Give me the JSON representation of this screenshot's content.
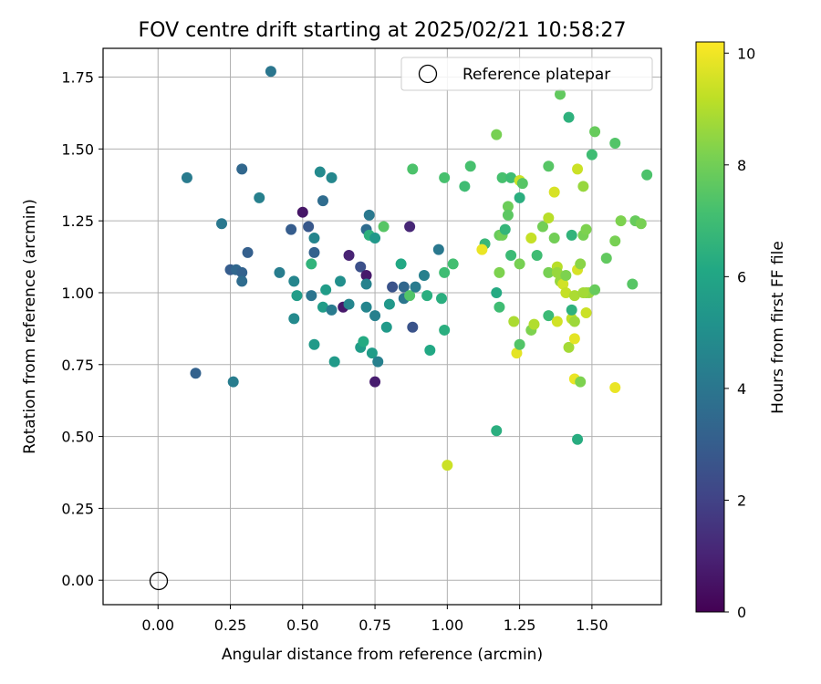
{
  "chart_data": {
    "type": "scatter",
    "title": "FOV centre drift starting at 2025/02/21 10:58:27",
    "xlabel": "Angular distance from reference (arcmin)",
    "ylabel": "Rotation from reference (arcmin)",
    "xlim": [
      -0.19,
      1.74
    ],
    "ylim": [
      -0.085,
      1.85
    ],
    "xticks": [
      0.0,
      0.25,
      0.5,
      0.75,
      1.0,
      1.25,
      1.5
    ],
    "xtick_labels": [
      "0.00",
      "0.25",
      "0.50",
      "0.75",
      "1.00",
      "1.25",
      "1.50"
    ],
    "yticks": [
      0.0,
      0.25,
      0.5,
      0.75,
      1.0,
      1.25,
      1.5,
      1.75
    ],
    "ytick_labels": [
      "0.00",
      "0.25",
      "0.50",
      "0.75",
      "1.00",
      "1.25",
      "1.50",
      "1.75"
    ],
    "grid": true,
    "legend": {
      "position": "top-right",
      "entries": [
        "Reference platepar"
      ]
    },
    "reference_point": {
      "x": 0.0,
      "y": 0.0
    },
    "colorbar": {
      "label": "Hours from first FF file",
      "range": [
        0,
        10.2
      ],
      "ticks": [
        0,
        2,
        4,
        6,
        8,
        10
      ],
      "colormap": "viridis"
    },
    "points": [
      [
        0.39,
        1.77,
        4.0
      ],
      [
        0.1,
        1.4,
        4.2
      ],
      [
        0.29,
        1.43,
        3.4
      ],
      [
        0.35,
        1.33,
        4.4
      ],
      [
        0.22,
        1.24,
        4.1
      ],
      [
        0.31,
        1.14,
        3.1
      ],
      [
        0.25,
        1.08,
        3.0
      ],
      [
        0.27,
        1.08,
        3.4
      ],
      [
        0.29,
        1.07,
        3.2
      ],
      [
        0.29,
        1.04,
        3.6
      ],
      [
        0.13,
        0.72,
        3.2
      ],
      [
        0.26,
        0.69,
        4.3
      ],
      [
        0.42,
        1.07,
        4.3
      ],
      [
        0.46,
        1.22,
        3.0
      ],
      [
        0.47,
        1.04,
        4.6
      ],
      [
        0.48,
        0.99,
        5.6
      ],
      [
        0.47,
        0.91,
        4.8
      ],
      [
        0.5,
        1.28,
        0.6
      ],
      [
        0.52,
        1.23,
        2.8
      ],
      [
        0.54,
        1.19,
        4.6
      ],
      [
        0.54,
        1.14,
        3.2
      ],
      [
        0.53,
        1.1,
        6.6
      ],
      [
        0.53,
        0.99,
        3.9
      ],
      [
        0.54,
        0.82,
        5.5
      ],
      [
        0.56,
        1.42,
        4.8
      ],
      [
        0.57,
        1.32,
        3.6
      ],
      [
        0.6,
        1.4,
        4.7
      ],
      [
        0.58,
        1.01,
        5.6
      ],
      [
        0.57,
        0.95,
        5.6
      ],
      [
        0.6,
        0.94,
        4.2
      ],
      [
        0.61,
        0.76,
        5.5
      ],
      [
        0.63,
        1.04,
        5.0
      ],
      [
        0.64,
        0.95,
        0.7
      ],
      [
        0.66,
        1.13,
        1.0
      ],
      [
        0.66,
        0.96,
        4.6
      ],
      [
        0.7,
        1.09,
        2.5
      ],
      [
        0.7,
        0.81,
        5.6
      ],
      [
        0.71,
        0.83,
        6.2
      ],
      [
        0.72,
        1.06,
        0.7
      ],
      [
        0.72,
        1.03,
        4.5
      ],
      [
        0.72,
        0.95,
        4.6
      ],
      [
        0.73,
        1.27,
        4.1
      ],
      [
        0.72,
        1.22,
        3.6
      ],
      [
        0.73,
        1.2,
        6.5
      ],
      [
        0.75,
        1.19,
        5.4
      ],
      [
        0.74,
        0.79,
        5.6
      ],
      [
        0.75,
        0.92,
        4.4
      ],
      [
        0.75,
        0.69,
        0.8
      ],
      [
        0.76,
        0.76,
        4.4
      ],
      [
        0.78,
        1.23,
        7.5
      ],
      [
        0.79,
        0.88,
        5.5
      ],
      [
        0.8,
        0.96,
        5.4
      ],
      [
        0.81,
        1.02,
        2.6
      ],
      [
        0.84,
        1.1,
        6.1
      ],
      [
        0.85,
        0.98,
        4.0
      ],
      [
        0.85,
        1.02,
        3.4
      ],
      [
        0.87,
        0.99,
        7.4
      ],
      [
        0.88,
        1.43,
        7.3
      ],
      [
        0.88,
        0.88,
        2.6
      ],
      [
        0.87,
        1.23,
        1.1
      ],
      [
        0.89,
        1.02,
        4.2
      ],
      [
        0.92,
        1.06,
        4.4
      ],
      [
        0.93,
        0.99,
        6.4
      ],
      [
        0.94,
        0.8,
        6.1
      ],
      [
        0.97,
        1.15,
        4.1
      ],
      [
        0.98,
        0.98,
        6.4
      ],
      [
        0.99,
        1.4,
        7.2
      ],
      [
        0.99,
        1.07,
        7.0
      ],
      [
        0.99,
        0.87,
        6.4
      ],
      [
        1.0,
        0.4,
        9.4
      ],
      [
        1.02,
        1.1,
        7.1
      ],
      [
        1.06,
        1.37,
        7.0
      ],
      [
        1.08,
        1.44,
        7.2
      ],
      [
        1.13,
        1.17,
        6.8
      ],
      [
        1.12,
        1.15,
        9.9
      ],
      [
        1.17,
        1.55,
        8.1
      ],
      [
        1.17,
        1.0,
        6.2
      ],
      [
        1.17,
        0.52,
        6.4
      ],
      [
        1.18,
        1.2,
        7.8
      ],
      [
        1.19,
        1.2,
        8.0
      ],
      [
        1.18,
        1.07,
        8.2
      ],
      [
        1.18,
        0.95,
        7.0
      ],
      [
        1.19,
        1.4,
        7.2
      ],
      [
        1.2,
        1.22,
        6.7
      ],
      [
        1.21,
        1.3,
        7.9
      ],
      [
        1.22,
        1.4,
        7.0
      ],
      [
        1.21,
        1.27,
        7.6
      ],
      [
        1.22,
        1.13,
        6.9
      ],
      [
        1.23,
        0.9,
        8.9
      ],
      [
        1.24,
        0.79,
        9.8
      ],
      [
        1.25,
        1.39,
        9.4
      ],
      [
        1.25,
        1.33,
        6.4
      ],
      [
        1.25,
        1.1,
        8.1
      ],
      [
        1.25,
        0.82,
        7.4
      ],
      [
        1.26,
        1.38,
        7.5
      ],
      [
        1.29,
        1.19,
        9.3
      ],
      [
        1.29,
        0.87,
        8.2
      ],
      [
        1.3,
        0.89,
        9.0
      ],
      [
        1.31,
        1.13,
        7.0
      ],
      [
        1.33,
        1.23,
        8.0
      ],
      [
        1.35,
        1.44,
        7.5
      ],
      [
        1.35,
        1.26,
        9.1
      ],
      [
        1.35,
        1.07,
        8.1
      ],
      [
        1.35,
        0.92,
        6.9
      ],
      [
        1.37,
        1.35,
        9.6
      ],
      [
        1.37,
        1.19,
        8.0
      ],
      [
        1.38,
        1.09,
        9.1
      ],
      [
        1.38,
        1.07,
        8.6
      ],
      [
        1.39,
        1.69,
        7.7
      ],
      [
        1.38,
        0.9,
        9.5
      ],
      [
        1.39,
        1.04,
        8.6
      ],
      [
        1.4,
        1.03,
        9.5
      ],
      [
        1.41,
        1.0,
        9.3
      ],
      [
        1.42,
        1.61,
        6.5
      ],
      [
        1.41,
        1.06,
        8.2
      ],
      [
        1.42,
        0.81,
        8.8
      ],
      [
        1.43,
        0.91,
        9.2
      ],
      [
        1.43,
        0.94,
        6.5
      ],
      [
        1.43,
        1.2,
        6.6
      ],
      [
        1.44,
        0.99,
        8.9
      ],
      [
        1.44,
        0.84,
        9.8
      ],
      [
        1.44,
        0.7,
        9.9
      ],
      [
        1.44,
        0.9,
        8.7
      ],
      [
        1.45,
        1.43,
        9.4
      ],
      [
        1.45,
        1.08,
        9.6
      ],
      [
        1.45,
        0.49,
        6.3
      ],
      [
        1.46,
        0.69,
        8.2
      ],
      [
        1.46,
        1.1,
        8.4
      ],
      [
        1.47,
        1.37,
        8.6
      ],
      [
        1.47,
        1.2,
        8.1
      ],
      [
        1.48,
        1.22,
        8.2
      ],
      [
        1.48,
        1.0,
        8.6
      ],
      [
        1.48,
        0.93,
        9.4
      ],
      [
        1.49,
        1.0,
        8.6
      ],
      [
        1.5,
        1.48,
        7.0
      ],
      [
        1.51,
        1.56,
        7.8
      ],
      [
        1.51,
        1.01,
        7.8
      ],
      [
        1.55,
        1.12,
        7.7
      ],
      [
        1.58,
        1.52,
        7.4
      ],
      [
        1.58,
        1.18,
        8.1
      ],
      [
        1.58,
        0.67,
        9.9
      ],
      [
        1.6,
        1.25,
        8.2
      ],
      [
        1.64,
        1.03,
        7.5
      ],
      [
        1.65,
        1.25,
        7.8
      ],
      [
        1.67,
        1.24,
        8.1
      ],
      [
        1.69,
        1.41,
        7.3
      ],
      [
        1.47,
        1.0,
        8.8
      ]
    ]
  }
}
